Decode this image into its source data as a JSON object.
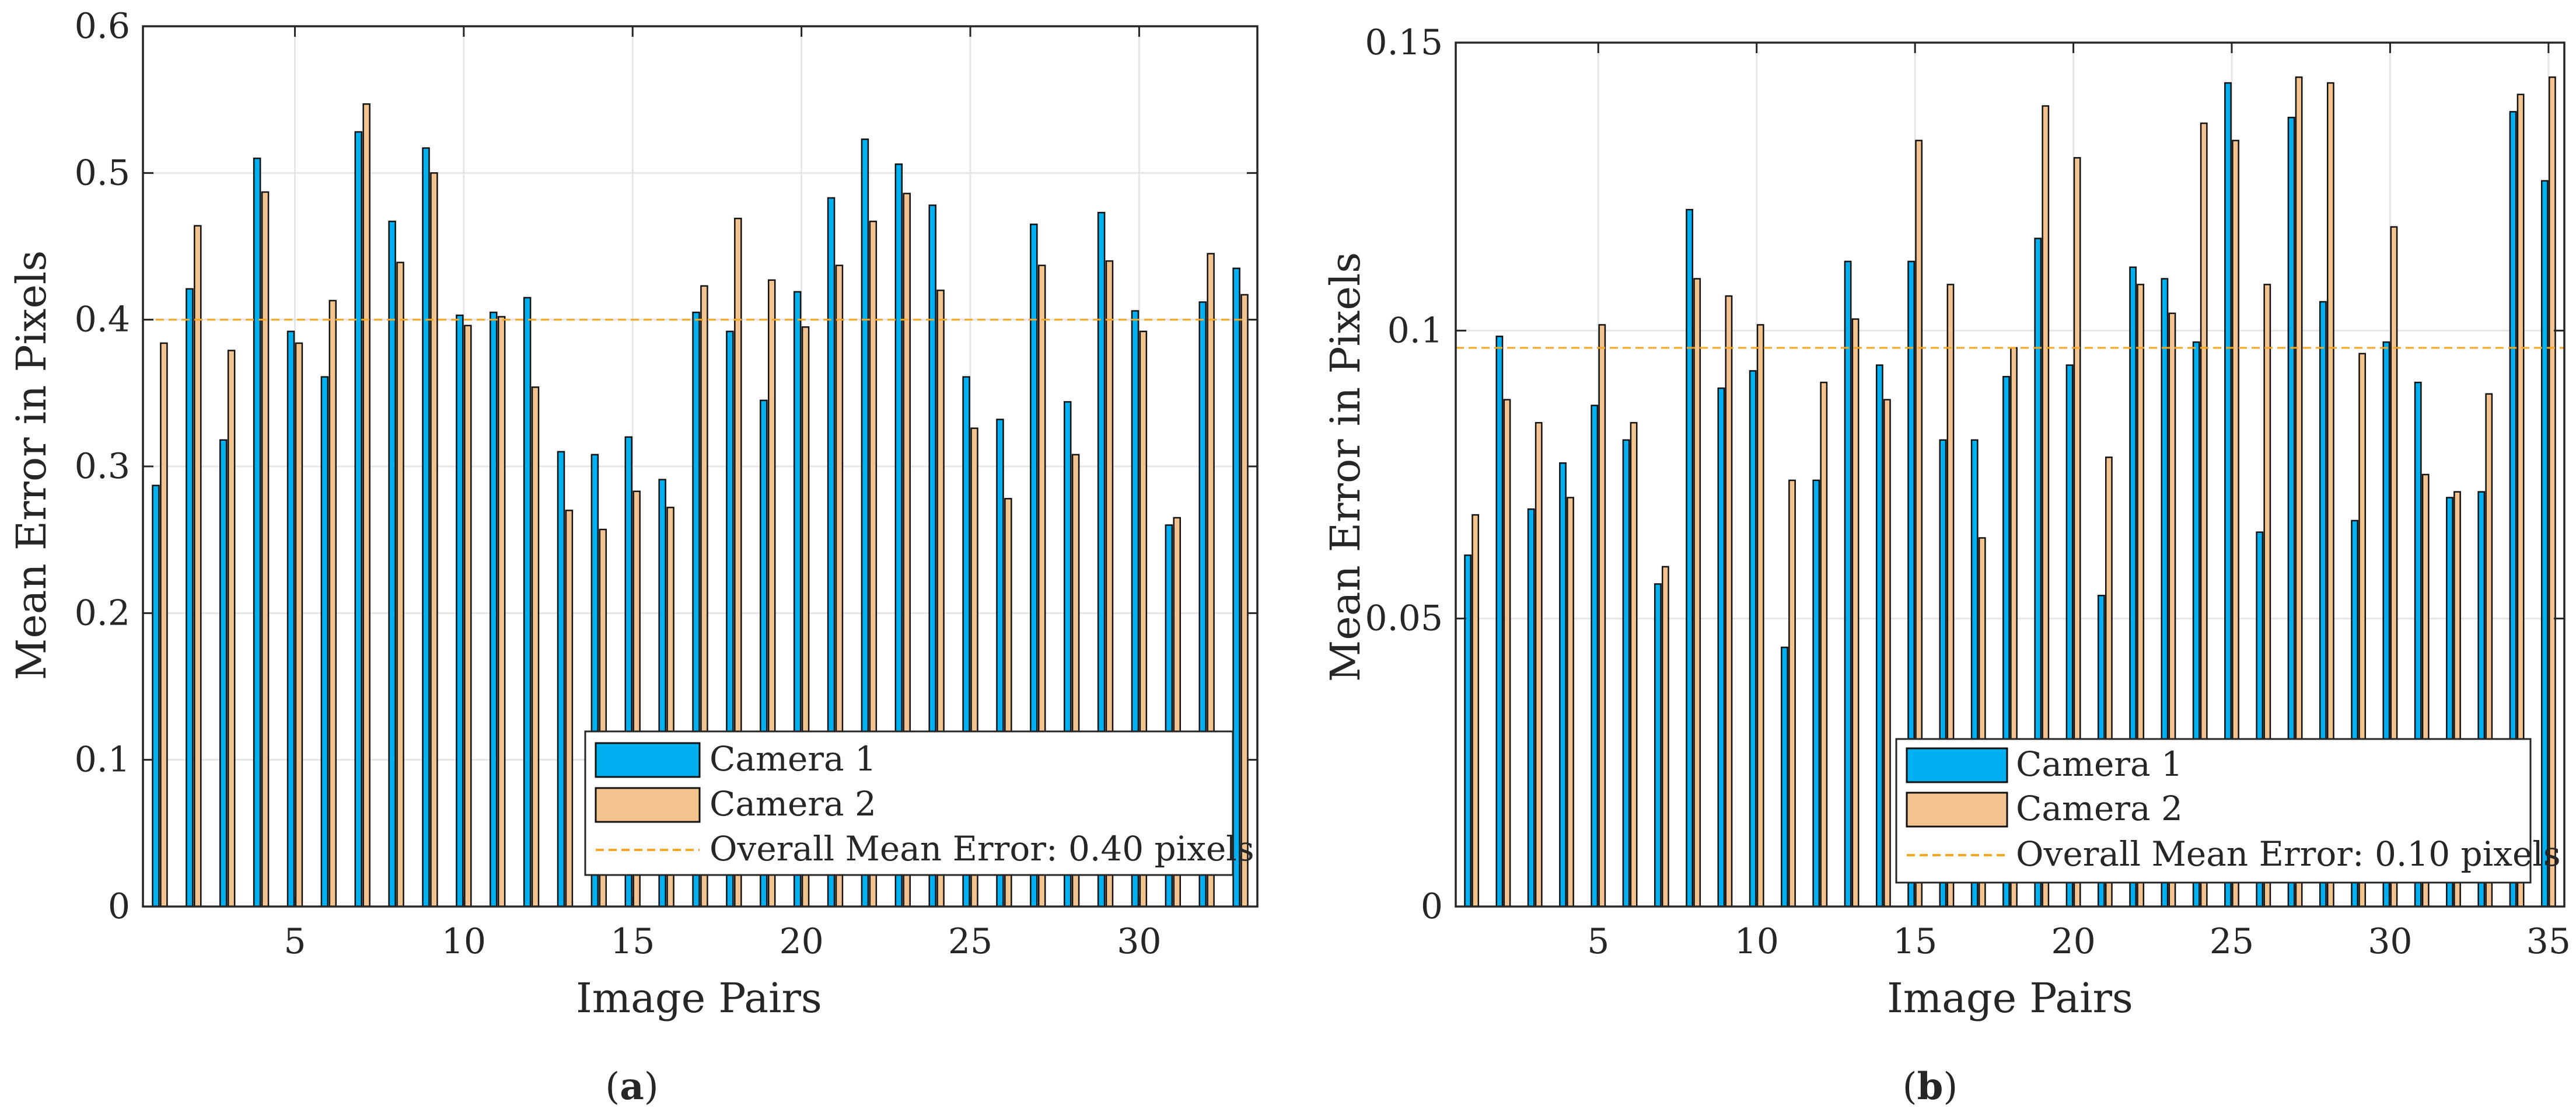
{
  "figure": {
    "panels": [
      "a",
      "b"
    ]
  },
  "colors": {
    "camera1": "#00b0f0",
    "camera2": "#f2c28f",
    "mean_line": "#f5a623",
    "grid": "#e6e6e6",
    "axis": "#262626",
    "bar_edge": "#111111"
  },
  "chart_data": [
    {
      "type": "bar",
      "panel_label": "a",
      "caption_open": "(",
      "caption_close": ")",
      "xlabel": "Image Pairs",
      "ylabel": "Mean Error in Pixels",
      "xlim": [
        0.5,
        33.5
      ],
      "ylim": [
        0,
        0.6
      ],
      "xticks": [
        5,
        10,
        15,
        20,
        25,
        30
      ],
      "xtick_labels": [
        "5",
        "10",
        "15",
        "20",
        "25",
        "30"
      ],
      "yticks": [
        0,
        0.1,
        0.2,
        0.3,
        0.4,
        0.5,
        0.6
      ],
      "ytick_labels": [
        "0",
        "0.1",
        "0.2",
        "0.3",
        "0.4",
        "0.5",
        "0.6"
      ],
      "categories": [
        1,
        2,
        3,
        4,
        5,
        6,
        7,
        8,
        9,
        10,
        11,
        12,
        13,
        14,
        15,
        16,
        17,
        18,
        19,
        20,
        21,
        22,
        23,
        24,
        25,
        26,
        27,
        28,
        29,
        30,
        31,
        32,
        33
      ],
      "series": [
        {
          "name": "Camera 1",
          "values": [
            0.287,
            0.421,
            0.318,
            0.51,
            0.392,
            0.361,
            0.528,
            0.467,
            0.517,
            0.403,
            0.405,
            0.415,
            0.31,
            0.308,
            0.32,
            0.291,
            0.405,
            0.392,
            0.345,
            0.419,
            0.483,
            0.523,
            0.506,
            0.478,
            0.361,
            0.332,
            0.465,
            0.344,
            0.473,
            0.406,
            0.26,
            0.412,
            0.435
          ]
        },
        {
          "name": "Camera 2",
          "values": [
            0.384,
            0.464,
            0.379,
            0.487,
            0.384,
            0.413,
            0.547,
            0.439,
            0.5,
            0.396,
            0.402,
            0.354,
            0.27,
            0.257,
            0.283,
            0.272,
            0.423,
            0.469,
            0.427,
            0.395,
            0.437,
            0.467,
            0.486,
            0.42,
            0.326,
            0.278,
            0.437,
            0.308,
            0.44,
            0.392,
            0.265,
            0.445,
            0.417
          ]
        }
      ],
      "mean_line_value": 0.4,
      "legend": {
        "location": "bottom-right",
        "entries": [
          "Camera 1",
          "Camera 2",
          "Overall Mean Error:  0.40 pixels"
        ]
      },
      "grid": true
    },
    {
      "type": "bar",
      "panel_label": "b",
      "caption_open": "(",
      "caption_close": ")",
      "xlabel": "Image Pairs",
      "ylabel": "Mean Error in Pixels",
      "xlim": [
        0.5,
        35.5
      ],
      "ylim": [
        0,
        0.15
      ],
      "xticks": [
        5,
        10,
        15,
        20,
        25,
        30,
        35
      ],
      "xtick_labels": [
        "5",
        "10",
        "15",
        "20",
        "25",
        "30",
        "35"
      ],
      "yticks": [
        0,
        0.05,
        0.1,
        0.15
      ],
      "ytick_labels": [
        "0",
        "0.05",
        "0.1",
        "0.15"
      ],
      "categories": [
        1,
        2,
        3,
        4,
        5,
        6,
        7,
        8,
        9,
        10,
        11,
        12,
        13,
        14,
        15,
        16,
        17,
        18,
        19,
        20,
        21,
        22,
        23,
        24,
        25,
        26,
        27,
        28,
        29,
        30,
        31,
        32,
        33,
        34,
        35
      ],
      "series": [
        {
          "name": "Camera 1",
          "values": [
            0.061,
            0.099,
            0.069,
            0.077,
            0.087,
            0.081,
            0.056,
            0.121,
            0.09,
            0.093,
            0.045,
            0.074,
            0.112,
            0.094,
            0.112,
            0.081,
            0.081,
            0.092,
            0.116,
            0.094,
            0.054,
            0.111,
            0.109,
            0.098,
            0.143,
            0.065,
            0.137,
            0.105,
            0.067,
            0.098,
            0.091,
            0.071,
            0.072,
            0.138,
            0.126
          ]
        },
        {
          "name": "Camera 2",
          "values": [
            0.068,
            0.088,
            0.084,
            0.071,
            0.101,
            0.084,
            0.059,
            0.109,
            0.106,
            0.101,
            0.074,
            0.091,
            0.102,
            0.088,
            0.133,
            0.108,
            0.064,
            0.097,
            0.139,
            0.13,
            0.078,
            0.108,
            0.103,
            0.136,
            0.133,
            0.108,
            0.144,
            0.143,
            0.096,
            0.118,
            0.075,
            0.072,
            0.089,
            0.141,
            0.144
          ]
        }
      ],
      "mean_line_value": 0.097,
      "legend": {
        "location": "bottom-right",
        "entries": [
          "Camera 1",
          "Camera 2",
          "Overall Mean Error:  0.10 pixels"
        ]
      },
      "grid": true
    }
  ]
}
